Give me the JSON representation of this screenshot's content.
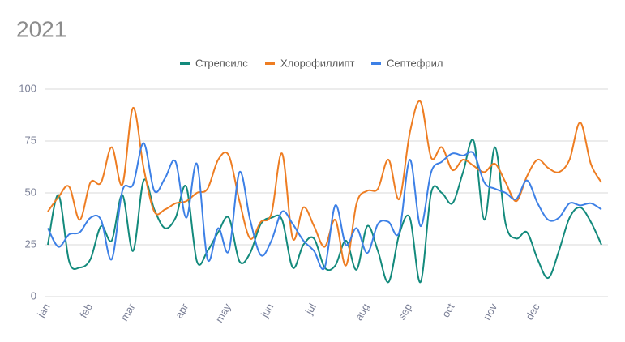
{
  "chart_data": {
    "type": "line",
    "title": "2021",
    "categories": [
      "jan",
      null,
      null,
      null,
      "feb",
      null,
      null,
      null,
      "mar",
      null,
      null,
      null,
      null,
      "apr",
      null,
      null,
      null,
      "may",
      null,
      null,
      null,
      "jun",
      null,
      null,
      null,
      "jul",
      null,
      null,
      null,
      null,
      "aug",
      null,
      null,
      null,
      "sep",
      null,
      null,
      null,
      "oct",
      null,
      null,
      null,
      "nov",
      null,
      null,
      null,
      "dec",
      null,
      null,
      null,
      null,
      null,
      null
    ],
    "series": [
      {
        "name": "Стрепсилс",
        "color": "#138a7c",
        "values": [
          25,
          49,
          17,
          14,
          18,
          34,
          27,
          49,
          22,
          56,
          42,
          33,
          38,
          53,
          17,
          22,
          31,
          38,
          17,
          21,
          35,
          38,
          37,
          14,
          25,
          28,
          14,
          15,
          27,
          13,
          34,
          22,
          7,
          30,
          38,
          7,
          50,
          50,
          45,
          60,
          75,
          37,
          72,
          35,
          28,
          31,
          18,
          9,
          22,
          38,
          43,
          36,
          25
        ]
      },
      {
        "name": "Хлорофиллипт",
        "color": "#ee7d22",
        "values": [
          41,
          48,
          53,
          37,
          55,
          55,
          72,
          54,
          91,
          62,
          41,
          42,
          45,
          46,
          50,
          52,
          66,
          68,
          46,
          28,
          36,
          40,
          69,
          28,
          43,
          34,
          24,
          37,
          15,
          45,
          51,
          52,
          66,
          47,
          79,
          94,
          67,
          72,
          61,
          66,
          63,
          60,
          64,
          55,
          46,
          58,
          66,
          62,
          60,
          66,
          84,
          64,
          55
        ]
      },
      {
        "name": "Септефрил",
        "color": "#3d80e6",
        "values": [
          33,
          24,
          30,
          31,
          38,
          37,
          18,
          51,
          54,
          74,
          51,
          57,
          65,
          38,
          64,
          18,
          33,
          22,
          60,
          37,
          20,
          27,
          41,
          35,
          27,
          22,
          14,
          44,
          25,
          33,
          21,
          35,
          36,
          31,
          66,
          34,
          60,
          65,
          69,
          68,
          69,
          55,
          52,
          50,
          47,
          56,
          45,
          37,
          38,
          45,
          44,
          45,
          42
        ]
      }
    ],
    "ylim": [
      0,
      100
    ],
    "yticks": [
      0,
      25,
      50,
      75,
      100
    ],
    "grid": true
  }
}
